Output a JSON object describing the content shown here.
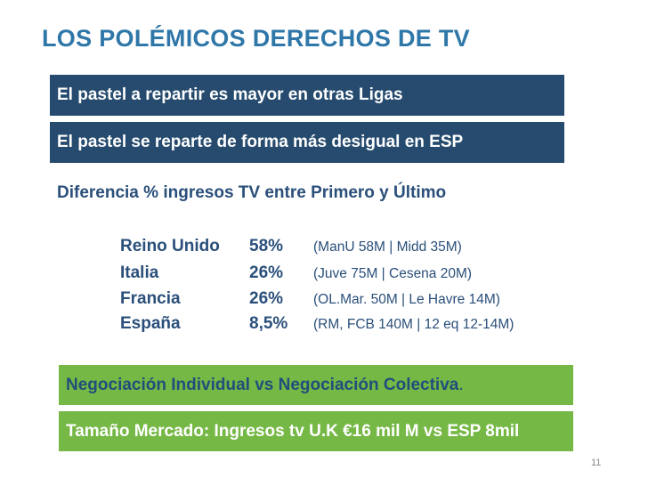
{
  "slide": {
    "title": "LOS POLÉMICOS DERECHOS DE TV",
    "banners": [
      "El pastel a repartir es mayor en otras Ligas",
      "El pastel se reparte de forma más desigual en ESP"
    ],
    "subtitle": "Diferencia  % ingresos TV entre Primero y Último",
    "rows": [
      {
        "country": "Reino Unido",
        "pct": "58%",
        "detail": "(ManU 58M | Midd 35M)"
      },
      {
        "country": "Italia",
        "pct": "26%",
        "detail": "(Juve 75M | Cesena 20M)"
      },
      {
        "country": "Francia",
        "pct": "26%",
        "detail": "(OL.Mar. 50M | Le Havre 14M)"
      },
      {
        "country": "España",
        "pct": "8,5%",
        "detail": "(RM, FCB 140M | 12 eq 12-14M)"
      }
    ],
    "footer_banners": [
      {
        "text": "Negociación Individual vs Negociación Colectiva",
        "suffix": "."
      },
      {
        "text": "Tamaño Mercado: Ingresos tv U.K €16 mil M vs ESP 8mil"
      }
    ],
    "page_number": "11"
  },
  "colors": {
    "title": "#2f77a8",
    "navy_banner": "#264b6e",
    "green_banner": "#76b846",
    "body_text": "#2a4f7a"
  }
}
